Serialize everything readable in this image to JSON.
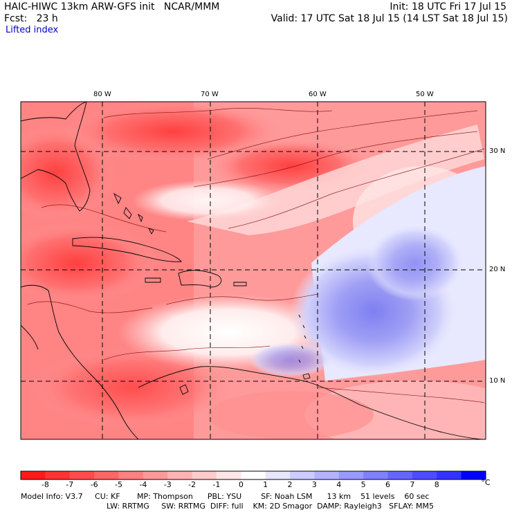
{
  "header": {
    "title_left": "HAIC-HIWC 13km ARW-GFS init   NCAR/MMM",
    "fcst_line": "Fcst:   23 h",
    "field_name": "Lifted index",
    "init_line": "Init: 18 UTC Fri 17 Jul 15",
    "valid_line": "Valid: 17 UTC Sat 18 Jul 15 (14 LST Sat 18 Jul 15)"
  },
  "axes": {
    "lon_labels": [
      "80 W",
      "70 W",
      "60 W",
      "50 W"
    ],
    "lat_labels": [
      "30 N",
      "20 N",
      "10 N"
    ]
  },
  "colorbar": {
    "labels": [
      "-8",
      "-7",
      "-6",
      "-5",
      "-4",
      "-3",
      "-2",
      "-1",
      "0",
      "1",
      "2",
      "3",
      "4",
      "5",
      "6",
      "7",
      "8"
    ],
    "unit": "°C",
    "colors": [
      "#ff1a1a",
      "#ff3333",
      "#ff4d4d",
      "#ff6666",
      "#ff8080",
      "#ff9999",
      "#ffb3b3",
      "#ffcccc",
      "#ffe6e6",
      "#ffffff",
      "#e6e6ff",
      "#ccccff",
      "#b3b3ff",
      "#9999ff",
      "#8080ff",
      "#6666ff",
      "#4d4dff",
      "#3333ff",
      "#0000ff"
    ]
  },
  "footer": {
    "line1": "Model Info: V3.7     CU: KF       MP: Thompson      PBL: YSU        SF: Noah LSM      13 km    51 levels    60 sec",
    "line2": "LW: RRTMG     SW: RRTMG  DIFF: full    KM: 2D Smagor  DAMP: Rayleigh3   SFLAY: MM5"
  }
}
